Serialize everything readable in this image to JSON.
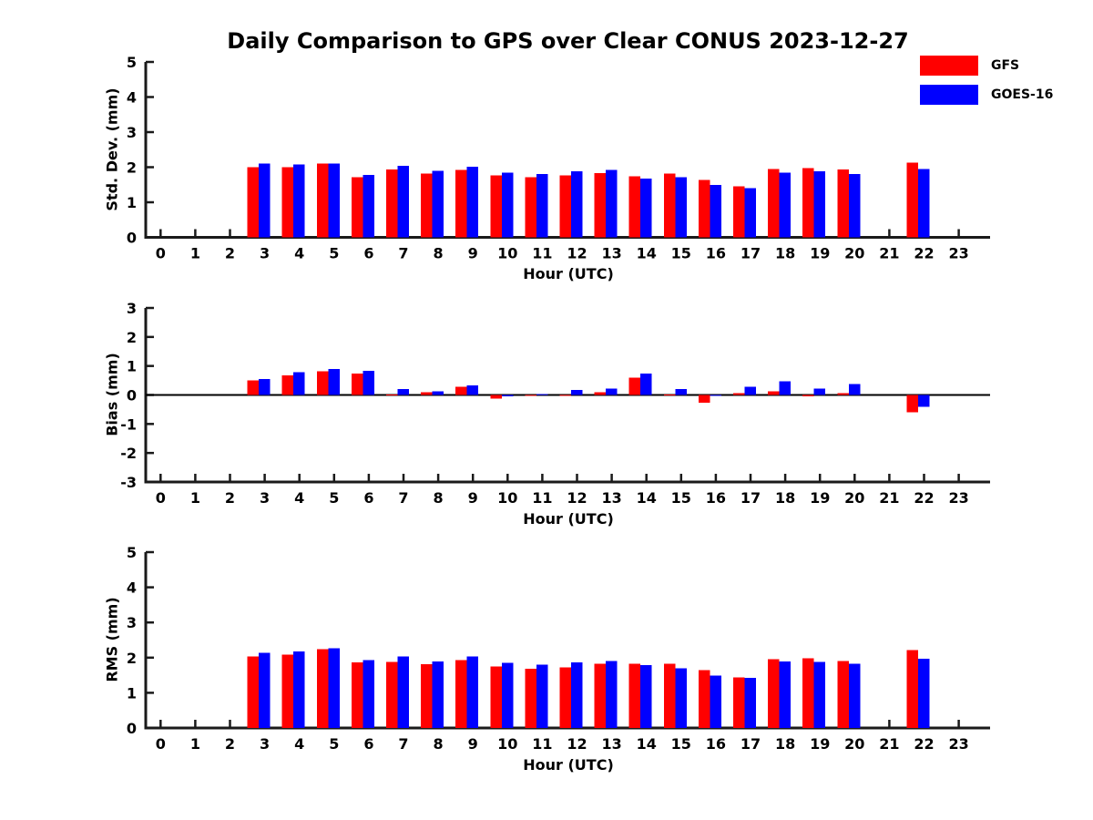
{
  "title": "Daily Comparison to GPS over Clear CONUS 2023-12-27",
  "legend": {
    "items": [
      {
        "label": "GFS",
        "color": "#ff0000"
      },
      {
        "label": "GOES-16",
        "color": "#0000ff"
      }
    ]
  },
  "colors": {
    "gfs": "#ff0000",
    "goes16": "#0000ff",
    "axis": "#1a1a1a",
    "background": "#ffffff"
  },
  "chart_data": [
    {
      "type": "bar",
      "ylabel": "Std. Dev. (mm)",
      "xlabel": "Hour (UTC)",
      "ylim": [
        0,
        5
      ],
      "yticks": [
        0,
        1,
        2,
        3,
        4,
        5
      ],
      "x": [
        0,
        1,
        2,
        3,
        4,
        5,
        6,
        7,
        8,
        9,
        10,
        11,
        12,
        13,
        14,
        15,
        16,
        17,
        18,
        19,
        20,
        21,
        22,
        23
      ],
      "grid": false,
      "legend_position": "top-right-figure",
      "series": [
        {
          "name": "GFS",
          "color": "#ff0000",
          "values": [
            null,
            null,
            null,
            2.0,
            2.0,
            2.1,
            1.72,
            1.93,
            1.82,
            1.92,
            1.77,
            1.72,
            1.77,
            1.83,
            1.74,
            1.82,
            1.63,
            1.46,
            1.95,
            1.98,
            1.93,
            null,
            2.13,
            null
          ]
        },
        {
          "name": "GOES-16",
          "color": "#0000ff",
          "values": [
            null,
            null,
            null,
            2.1,
            2.08,
            2.1,
            1.78,
            2.04,
            1.89,
            2.01,
            1.85,
            1.8,
            1.88,
            1.92,
            1.67,
            1.72,
            1.5,
            1.4,
            1.84,
            1.88,
            1.8,
            null,
            1.95,
            null
          ]
        }
      ]
    },
    {
      "type": "bar",
      "ylabel": "Bias (mm)",
      "xlabel": "Hour (UTC)",
      "ylim": [
        -3,
        3
      ],
      "yticks": [
        -3,
        -2,
        -1,
        0,
        1,
        2,
        3
      ],
      "x": [
        0,
        1,
        2,
        3,
        4,
        5,
        6,
        7,
        8,
        9,
        10,
        11,
        12,
        13,
        14,
        15,
        16,
        17,
        18,
        19,
        20,
        21,
        22,
        23
      ],
      "grid": false,
      "zero_line": true,
      "series": [
        {
          "name": "GFS",
          "color": "#ff0000",
          "values": [
            null,
            null,
            null,
            0.51,
            0.67,
            0.82,
            0.74,
            0.02,
            0.1,
            0.29,
            -0.12,
            -0.02,
            -0.03,
            0.1,
            0.59,
            0.02,
            -0.27,
            0.06,
            0.13,
            -0.04,
            0.06,
            null,
            -0.6,
            null
          ]
        },
        {
          "name": "GOES-16",
          "color": "#0000ff",
          "values": [
            null,
            null,
            null,
            0.55,
            0.78,
            0.9,
            0.83,
            0.2,
            0.13,
            0.33,
            -0.05,
            0.03,
            0.18,
            0.22,
            0.74,
            0.2,
            -0.03,
            0.29,
            0.47,
            0.22,
            0.38,
            null,
            -0.41,
            null
          ]
        }
      ]
    },
    {
      "type": "bar",
      "ylabel": "RMS (mm)",
      "xlabel": "Hour (UTC)",
      "ylim": [
        0,
        5
      ],
      "yticks": [
        0,
        1,
        2,
        3,
        4,
        5
      ],
      "x": [
        0,
        1,
        2,
        3,
        4,
        5,
        6,
        7,
        8,
        9,
        10,
        11,
        12,
        13,
        14,
        15,
        16,
        17,
        18,
        19,
        20,
        21,
        22,
        23
      ],
      "grid": false,
      "series": [
        {
          "name": "GFS",
          "color": "#ff0000",
          "values": [
            null,
            null,
            null,
            2.03,
            2.09,
            2.24,
            1.86,
            1.88,
            1.81,
            1.93,
            1.75,
            1.68,
            1.72,
            1.82,
            1.82,
            1.82,
            1.65,
            1.44,
            1.95,
            1.98,
            1.91,
            null,
            2.21,
            null
          ]
        },
        {
          "name": "GOES-16",
          "color": "#0000ff",
          "values": [
            null,
            null,
            null,
            2.14,
            2.18,
            2.27,
            1.93,
            2.03,
            1.89,
            2.03,
            1.85,
            1.8,
            1.87,
            1.91,
            1.79,
            1.7,
            1.49,
            1.42,
            1.89,
            1.88,
            1.82,
            null,
            1.97,
            null
          ]
        }
      ]
    }
  ]
}
